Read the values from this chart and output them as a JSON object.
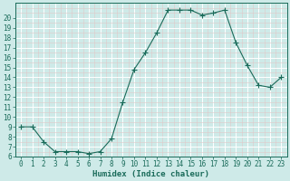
{
  "x": [
    0,
    1,
    2,
    3,
    4,
    5,
    6,
    7,
    8,
    9,
    10,
    11,
    12,
    13,
    14,
    15,
    16,
    17,
    18,
    19,
    20,
    21,
    22,
    23
  ],
  "y": [
    9,
    9,
    7.5,
    6.5,
    6.5,
    6.5,
    6.3,
    6.5,
    7.8,
    11.5,
    14.8,
    16.5,
    18.5,
    20.8,
    20.8,
    20.8,
    20.3,
    20.5,
    20.8,
    17.5,
    15.2,
    13.2,
    13.0,
    14.0
  ],
  "line_color": "#1a6b5a",
  "marker": "+",
  "marker_size": 4,
  "bg_color": "#ceeae8",
  "grid_major_color": "#ffffff",
  "grid_minor_color": "#e0c8c8",
  "axis_color": "#1a6b5a",
  "xlabel": "Humidex (Indice chaleur)",
  "xlabel_fontsize": 6.5,
  "ylim": [
    6,
    21
  ],
  "xlim": [
    -0.5,
    23.5
  ],
  "yticks": [
    6,
    7,
    8,
    9,
    10,
    11,
    12,
    13,
    14,
    15,
    16,
    17,
    18,
    19,
    20
  ],
  "xticks": [
    0,
    1,
    2,
    3,
    4,
    5,
    6,
    7,
    8,
    9,
    10,
    11,
    12,
    13,
    14,
    15,
    16,
    17,
    18,
    19,
    20,
    21,
    22,
    23
  ],
  "tick_fontsize": 5.5,
  "linewidth": 0.8
}
